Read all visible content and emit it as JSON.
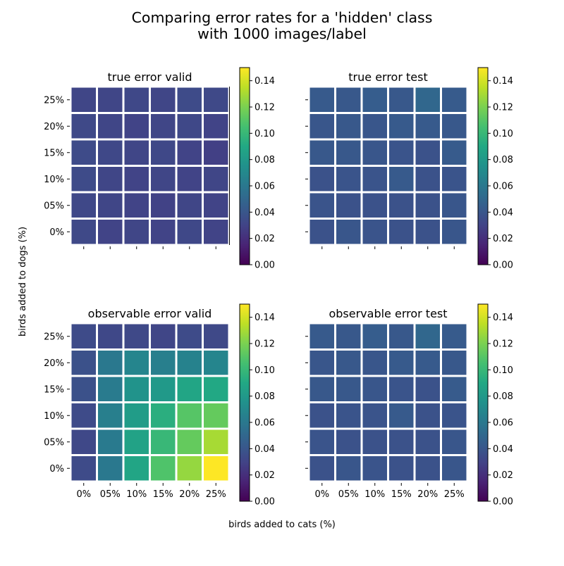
{
  "figure": {
    "title_line1": "Comparing error rates for a 'hidden' class",
    "title_line2": "with 1000 images/label",
    "xlabel": "birds added to cats (%)",
    "ylabel": "birds added to dogs (%)"
  },
  "colormap": {
    "name": "viridis",
    "vmin": 0.0,
    "vmax": 0.15,
    "ticks": [
      "0.00",
      "0.02",
      "0.04",
      "0.06",
      "0.08",
      "0.10",
      "0.12",
      "0.14"
    ]
  },
  "chart_data": [
    {
      "type": "heatmap",
      "title": "true error valid",
      "x_categories": [
        "0%",
        "05%",
        "10%",
        "15%",
        "20%",
        "25%"
      ],
      "y_categories": [
        "0%",
        "05%",
        "10%",
        "15%",
        "20%",
        "25%"
      ],
      "values": [
        [
          0.033,
          0.03,
          0.031,
          0.03,
          0.032,
          0.03
        ],
        [
          0.032,
          0.031,
          0.03,
          0.029,
          0.031,
          0.03
        ],
        [
          0.034,
          0.031,
          0.03,
          0.031,
          0.03,
          0.031
        ],
        [
          0.034,
          0.032,
          0.031,
          0.032,
          0.03,
          0.028
        ],
        [
          0.033,
          0.031,
          0.03,
          0.031,
          0.032,
          0.03
        ],
        [
          0.031,
          0.031,
          0.032,
          0.031,
          0.034,
          0.033
        ]
      ],
      "vmin": 0.0,
      "vmax": 0.15
    },
    {
      "type": "heatmap",
      "title": "true error test",
      "x_categories": [
        "0%",
        "05%",
        "10%",
        "15%",
        "20%",
        "25%"
      ],
      "y_categories": [
        "0%",
        "05%",
        "10%",
        "15%",
        "20%",
        "25%"
      ],
      "values": [
        [
          0.038,
          0.04,
          0.039,
          0.038,
          0.038,
          0.04
        ],
        [
          0.039,
          0.038,
          0.038,
          0.038,
          0.038,
          0.04
        ],
        [
          0.038,
          0.039,
          0.039,
          0.042,
          0.038,
          0.039
        ],
        [
          0.041,
          0.041,
          0.04,
          0.039,
          0.038,
          0.043
        ],
        [
          0.04,
          0.041,
          0.04,
          0.042,
          0.042,
          0.041
        ],
        [
          0.042,
          0.041,
          0.044,
          0.041,
          0.05,
          0.043
        ]
      ],
      "vmin": 0.0,
      "vmax": 0.15
    },
    {
      "type": "heatmap",
      "title": "observable error valid",
      "x_categories": [
        "0%",
        "05%",
        "10%",
        "15%",
        "20%",
        "25%"
      ],
      "y_categories": [
        "0%",
        "05%",
        "10%",
        "15%",
        "20%",
        "25%"
      ],
      "values": [
        [
          0.034,
          0.06,
          0.088,
          0.108,
          0.126,
          0.15
        ],
        [
          0.032,
          0.061,
          0.086,
          0.1,
          0.114,
          0.13
        ],
        [
          0.034,
          0.064,
          0.082,
          0.094,
          0.11,
          0.114
        ],
        [
          0.037,
          0.062,
          0.076,
          0.08,
          0.088,
          0.09
        ],
        [
          0.037,
          0.06,
          0.068,
          0.064,
          0.066,
          0.068
        ],
        [
          0.034,
          0.032,
          0.033,
          0.031,
          0.034,
          0.033
        ]
      ],
      "vmin": 0.0,
      "vmax": 0.15
    },
    {
      "type": "heatmap",
      "title": "observable error test",
      "x_categories": [
        "0%",
        "05%",
        "10%",
        "15%",
        "20%",
        "25%"
      ],
      "y_categories": [
        "0%",
        "05%",
        "10%",
        "15%",
        "20%",
        "25%"
      ],
      "values": [
        [
          0.038,
          0.04,
          0.039,
          0.038,
          0.038,
          0.04
        ],
        [
          0.039,
          0.038,
          0.038,
          0.038,
          0.038,
          0.04
        ],
        [
          0.038,
          0.039,
          0.039,
          0.042,
          0.038,
          0.039
        ],
        [
          0.041,
          0.041,
          0.04,
          0.039,
          0.038,
          0.043
        ],
        [
          0.04,
          0.041,
          0.04,
          0.042,
          0.042,
          0.041
        ],
        [
          0.042,
          0.041,
          0.044,
          0.041,
          0.05,
          0.043
        ]
      ],
      "vmin": 0.0,
      "vmax": 0.15
    }
  ]
}
